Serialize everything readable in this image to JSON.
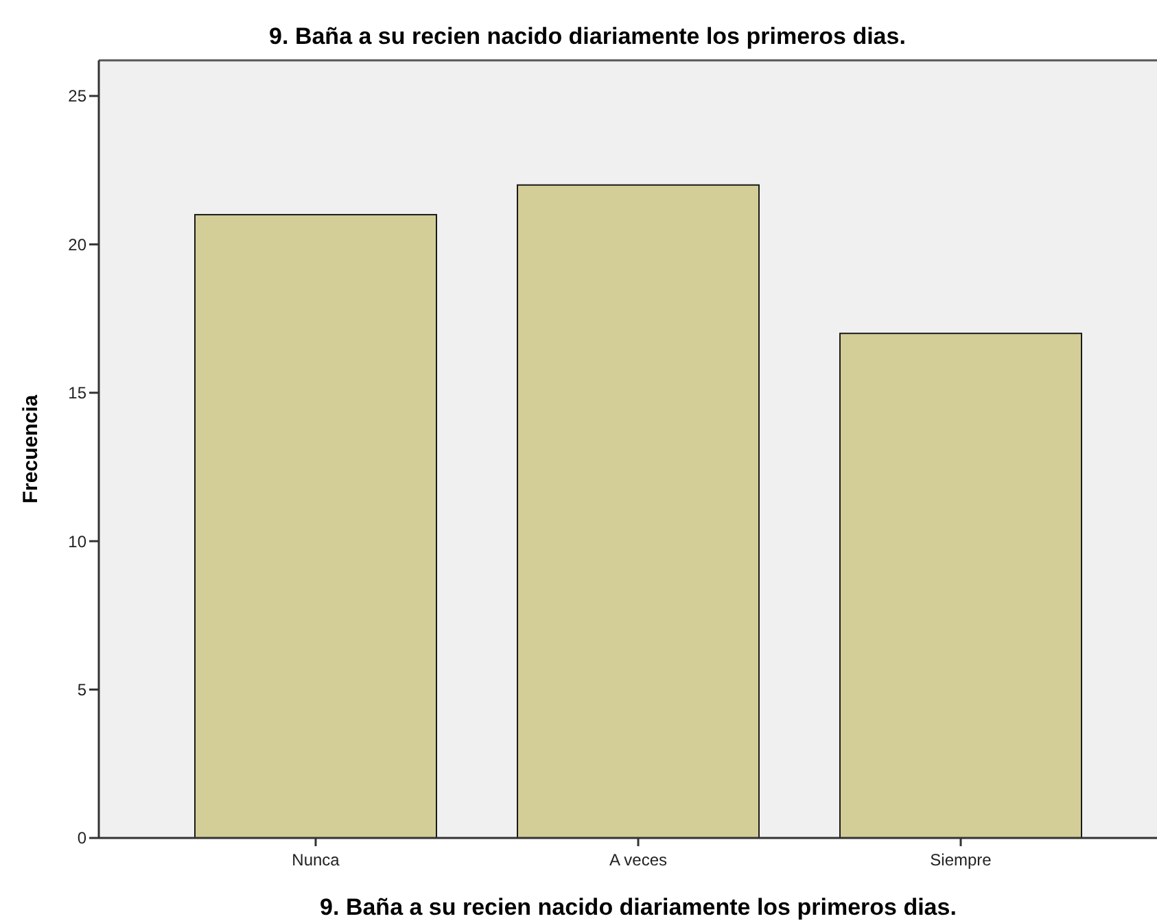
{
  "chart_data": {
    "type": "bar",
    "title": "9. Baña a su recien nacido diariamente los primeros dias.",
    "xlabel": "9. Baña a su recien nacido diariamente los primeros dias.",
    "ylabel": "Frecuencia",
    "categories": [
      "Nunca",
      "A veces",
      "Siempre"
    ],
    "values": [
      21,
      22,
      17
    ],
    "color": "#d3ce97",
    "ylim": [
      0,
      26.2
    ],
    "yticks": [
      0,
      5,
      10,
      15,
      20,
      25
    ]
  }
}
